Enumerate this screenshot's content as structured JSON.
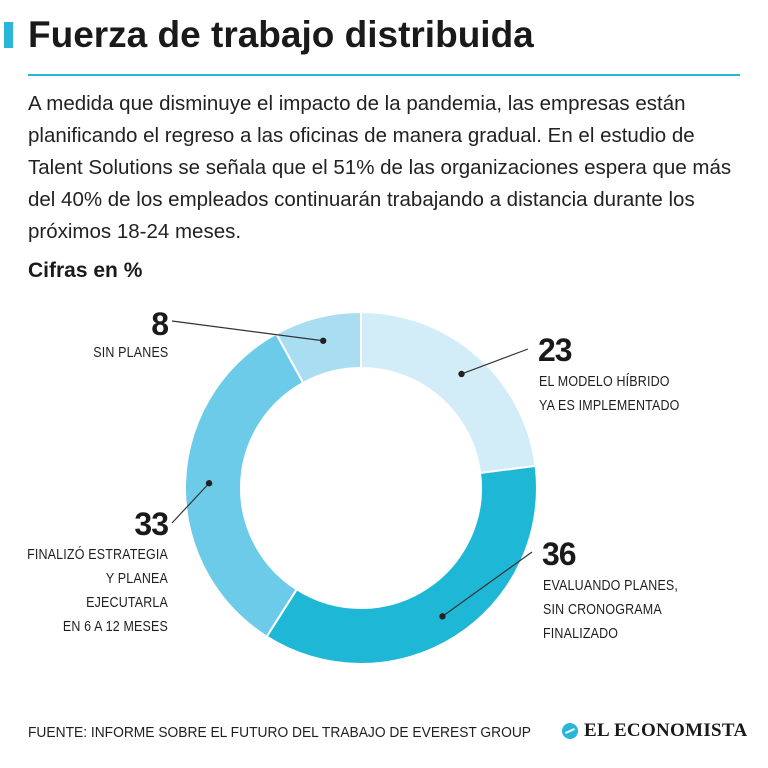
{
  "header": {
    "title": "Fuerza de trabajo distribuida",
    "intro": "A medida que disminuye el impacto de la pandemia, las empresas están planificando el regreso a las oficinas de manera gradual. En el estudio de Talent Solutions se señala que el 51% de las organizaciones espera que más del 40% de los empleados continuarán trabajando a distancia durante los próximos 18-24 meses.",
    "units": "Cifras en %"
  },
  "chart_data": {
    "type": "pie",
    "categories": [
      "EL MODELO HÍBRIDO YA ES IMPLEMENTADO",
      "EVALUANDO PLANES, SIN CRONOGRAMA FINALIZADO",
      "FINALIZÓ ESTRATEGIA Y PLANEA EJECUTARLA EN 6 A 12 MESES",
      "SIN PLANES"
    ],
    "values": [
      23,
      36,
      33,
      8
    ],
    "colors": [
      "#d3edf8",
      "#1fb7d6",
      "#6ccbe8",
      "#a9def2"
    ],
    "unit": "%"
  },
  "labels": {
    "value_23": "23",
    "label_23": "EL MODELO HÍBRIDO\nYA ES IMPLEMENTADO",
    "value_36": "36",
    "label_36": "EVALUANDO PLANES,\nSIN CRONOGRAMA\nFINALIZADO",
    "value_33": "33",
    "label_33": "FINALIZÓ ESTRATEGIA\nY PLANEA EJECUTARLA\nEN 6 A 12 MESES",
    "value_8": "8",
    "label_8": "SIN PLANES"
  },
  "footer": {
    "source": "FUENTE: INFORME SOBRE EL FUTURO DEL TRABAJO DE EVEREST GROUP",
    "brand": "EL ECONOMISTA",
    "brand_icon": "globe-logo-icon",
    "accent_color": "#29b6d8"
  }
}
